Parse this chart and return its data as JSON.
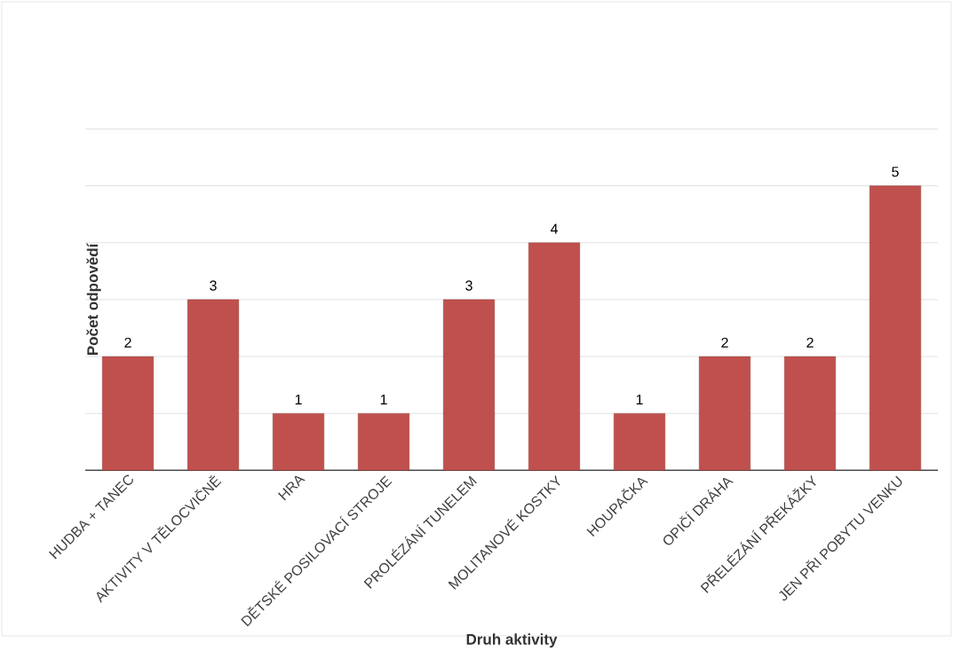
{
  "chart_data": {
    "type": "bar",
    "xlabel": "Druh aktivity",
    "ylabel": "Počet odpovědí",
    "categories": [
      "HUDBA + TANEC",
      "AKTIVITY V TĚLOCVIČNĚ",
      "HRA",
      "DĚTSKÉ POSILOVACÍ STROJE",
      "PROLÉZÁNÍ TUNELEM",
      "MOLITANOVÉ KOSTKY",
      "HOUPAČKA",
      "OPIČÍ DRÁHA",
      "PŘELÉZÁNÍ PŘEKÁŽKY",
      "JEN PŘI POBYTU VENKU"
    ],
    "values": [
      2,
      3,
      1,
      1,
      3,
      4,
      1,
      2,
      2,
      5
    ],
    "color": "#c0504d",
    "ylim": [
      0,
      6
    ],
    "yticks": [
      {
        "value": 0,
        "label": null
      },
      {
        "value": 1,
        "label": null
      },
      {
        "value": 2,
        "label": null
      },
      {
        "value": 3,
        "label": null
      },
      {
        "value": 4,
        "label": null
      },
      {
        "value": 5,
        "label": null
      },
      {
        "value": 6,
        "label": null
      }
    ],
    "grid": "y",
    "tick_labels": "x",
    "data_labels": true
  }
}
